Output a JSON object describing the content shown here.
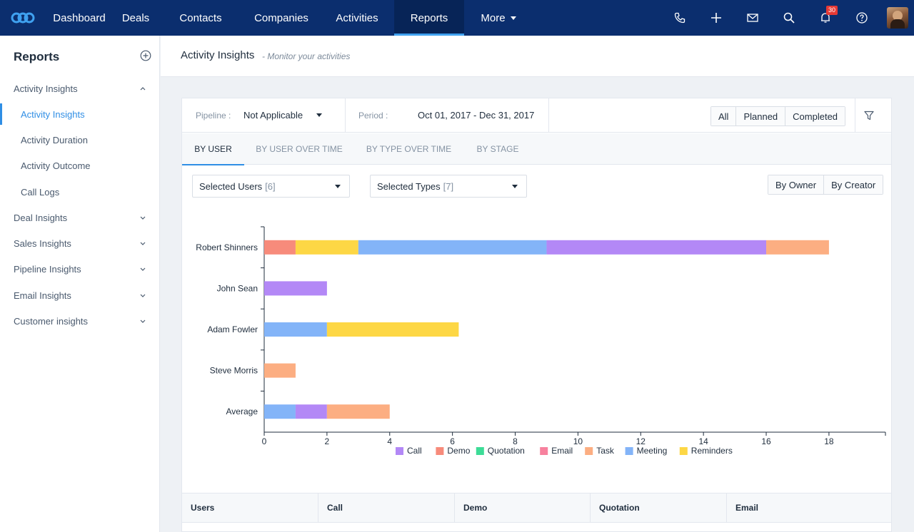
{
  "topnav": {
    "items": [
      {
        "label": "Dashboard"
      },
      {
        "label": "Deals"
      },
      {
        "label": "Contacts"
      },
      {
        "label": "Companies"
      },
      {
        "label": "Activities"
      },
      {
        "label": "Reports"
      },
      {
        "label": "More"
      }
    ],
    "active": "Reports",
    "notification_count": "30",
    "icons": [
      "phone-icon",
      "plus-icon",
      "mail-icon",
      "search-icon",
      "bell-icon",
      "help-icon"
    ]
  },
  "sidebar": {
    "title": "Reports",
    "items": [
      {
        "label": "Activity Insights"
      },
      {
        "label": "Activity Insights"
      },
      {
        "label": "Activity Duration"
      },
      {
        "label": "Activity Outcome"
      },
      {
        "label": "Call Logs"
      },
      {
        "label": "Deal Insights"
      },
      {
        "label": "Sales Insights"
      },
      {
        "label": "Pipeline Insights"
      },
      {
        "label": "Email Insights"
      },
      {
        "label": "Customer insights"
      }
    ]
  },
  "header": {
    "title": "Activity Insights",
    "subtitle": "- Monitor your activities"
  },
  "filters": {
    "pipeline_label": "Pipeline :",
    "pipeline_value": "Not Applicable",
    "period_label": "Period :",
    "period_value": "Oct 01, 2017 - Dec 31, 2017",
    "status_buttons": [
      {
        "label": "All"
      },
      {
        "label": "Planned"
      },
      {
        "label": "Completed"
      }
    ]
  },
  "tabs": [
    {
      "label": "BY USER"
    },
    {
      "label": "BY USER OVER TIME"
    },
    {
      "label": "BY TYPE OVER TIME"
    },
    {
      "label": "BY STAGE"
    }
  ],
  "selectors": {
    "users_label": "Selected Users",
    "users_count": "[6]",
    "types_label": "Selected Types",
    "types_count": "[7]",
    "owner_buttons": [
      {
        "label": "By Owner"
      },
      {
        "label": "By Creator"
      }
    ]
  },
  "chart_data": {
    "type": "bar",
    "orientation": "horizontal",
    "stacked": true,
    "categories": [
      "Robert Shinners",
      "John Sean",
      "Adam Fowler",
      "Steve Morris",
      "Average"
    ],
    "series": [
      {
        "name": "Call",
        "color": "#b388f6",
        "values": [
          7,
          2,
          0,
          0,
          1
        ]
      },
      {
        "name": "Demo",
        "color": "#f78b7b",
        "values": [
          1,
          0,
          0,
          0,
          0
        ]
      },
      {
        "name": "Quotation",
        "color": "#3ddc97",
        "values": [
          0,
          0,
          0,
          0,
          0
        ]
      },
      {
        "name": "Email",
        "color": "#f7819e",
        "values": [
          0,
          0,
          0,
          0,
          0
        ]
      },
      {
        "name": "Task",
        "color": "#fcae82",
        "values": [
          2,
          0,
          0,
          1,
          2
        ]
      },
      {
        "name": "Meeting",
        "color": "#83b4f8",
        "values": [
          6,
          0,
          2,
          0,
          1
        ]
      },
      {
        "name": "Reminders",
        "color": "#fdd745",
        "values": [
          2,
          0,
          4.2,
          0,
          0
        ]
      }
    ],
    "segment_order": [
      [
        {
          "s": 1,
          "v": 1
        },
        {
          "s": 6,
          "v": 2
        },
        {
          "s": 5,
          "v": 6
        },
        {
          "s": 0,
          "v": 7
        },
        {
          "s": 4,
          "v": 2
        }
      ],
      [
        {
          "s": 0,
          "v": 2
        }
      ],
      [
        {
          "s": 5,
          "v": 2
        },
        {
          "s": 6,
          "v": 4.2
        }
      ],
      [
        {
          "s": 4,
          "v": 1
        }
      ],
      [
        {
          "s": 5,
          "v": 1
        },
        {
          "s": 0,
          "v": 1
        },
        {
          "s": 4,
          "v": 2
        }
      ]
    ],
    "x_ticks": [
      0,
      2,
      4,
      6,
      8,
      10,
      12,
      14,
      16,
      18
    ],
    "xlim": [
      0,
      19.8
    ],
    "legend_position": "bottom"
  },
  "table": {
    "columns": [
      {
        "label": "Users"
      },
      {
        "label": "Call"
      },
      {
        "label": "Demo"
      },
      {
        "label": "Quotation"
      },
      {
        "label": "Email"
      }
    ]
  }
}
